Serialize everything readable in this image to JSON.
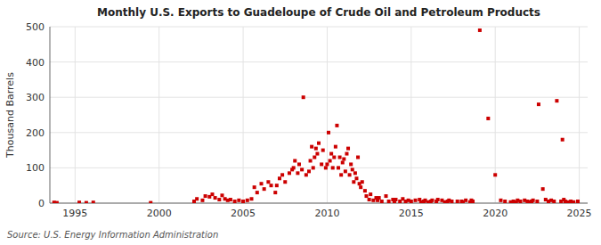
{
  "chart_data": {
    "type": "scatter",
    "title": "Monthly U.S. Exports to Guadeloupe of Crude Oil and Petroleum Products",
    "ylabel": "Thousand Barrels",
    "annotations": [
      "Source: U.S. Energy Information Administration"
    ],
    "color": "#cc0000",
    "marker": "square",
    "grid": true,
    "xlim": [
      1993.5,
      2025.5
    ],
    "ylim": [
      0,
      500
    ],
    "xticks": [
      1995,
      2000,
      2005,
      2010,
      2015,
      2020,
      2025
    ],
    "yticks": [
      0,
      100,
      200,
      300,
      400,
      500
    ],
    "x": [
      1993.75,
      1993.917,
      1995.25,
      1995.667,
      1996.083,
      1999.5,
      2002.083,
      2002.25,
      2002.583,
      2002.75,
      2003.0,
      2003.167,
      2003.333,
      2003.583,
      2003.75,
      2003.917,
      2004.083,
      2004.25,
      2004.5,
      2004.75,
      2005.0,
      2005.25,
      2005.5,
      2005.667,
      2005.833,
      2006.083,
      2006.25,
      2006.5,
      2006.667,
      2006.917,
      2007.0,
      2007.167,
      2007.333,
      2007.5,
      2007.75,
      2007.917,
      2008.0,
      2008.083,
      2008.25,
      2008.333,
      2008.5,
      2008.583,
      2008.75,
      2008.917,
      2009.0,
      2009.083,
      2009.167,
      2009.25,
      2009.333,
      2009.417,
      2009.5,
      2009.667,
      2009.75,
      2009.917,
      2010.0,
      2010.083,
      2010.167,
      2010.25,
      2010.333,
      2010.417,
      2010.5,
      2010.583,
      2010.667,
      2010.75,
      2010.833,
      2010.917,
      2011.0,
      2011.083,
      2011.167,
      2011.25,
      2011.333,
      2011.417,
      2011.5,
      2011.583,
      2011.667,
      2011.75,
      2011.833,
      2011.917,
      2012.0,
      2012.083,
      2012.25,
      2012.333,
      2012.5,
      2012.583,
      2012.75,
      2012.917,
      2013.0,
      2013.083,
      2013.25,
      2013.5,
      2013.667,
      2013.917,
      2014.0,
      2014.083,
      2014.333,
      2014.5,
      2014.667,
      2014.833,
      2015.0,
      2015.25,
      2015.5,
      2015.583,
      2015.75,
      2015.833,
      2016.0,
      2016.167,
      2016.25,
      2016.5,
      2016.583,
      2016.833,
      2017.0,
      2017.167,
      2017.25,
      2017.417,
      2017.75,
      2018.0,
      2018.083,
      2018.25,
      2018.5,
      2018.583,
      2018.667,
      2019.083,
      2019.583,
      2020.0,
      2020.333,
      2020.583,
      2020.917,
      2021.083,
      2021.25,
      2021.333,
      2021.5,
      2021.75,
      2021.917,
      2022.0,
      2022.167,
      2022.25,
      2022.5,
      2022.583,
      2022.833,
      2023.0,
      2023.167,
      2023.333,
      2023.5,
      2023.667,
      2023.917,
      2024.0,
      2024.083,
      2024.167,
      2024.333,
      2024.5,
      2024.667,
      2024.917
    ],
    "values": [
      2,
      1,
      2,
      1,
      2,
      1,
      5,
      12,
      8,
      20,
      18,
      25,
      15,
      10,
      22,
      12,
      8,
      10,
      5,
      8,
      5,
      8,
      12,
      45,
      30,
      55,
      40,
      60,
      50,
      30,
      50,
      70,
      80,
      60,
      85,
      95,
      100,
      120,
      85,
      110,
      95,
      300,
      80,
      90,
      120,
      160,
      100,
      130,
      155,
      140,
      170,
      110,
      150,
      100,
      110,
      200,
      120,
      140,
      100,
      130,
      160,
      220,
      100,
      130,
      80,
      115,
      125,
      90,
      140,
      155,
      80,
      110,
      95,
      60,
      85,
      70,
      130,
      55,
      45,
      60,
      35,
      20,
      10,
      25,
      8,
      15,
      8,
      15,
      5,
      20,
      5,
      10,
      5,
      10,
      5,
      12,
      5,
      8,
      5,
      8,
      10,
      3,
      5,
      8,
      3,
      5,
      8,
      5,
      10,
      8,
      3,
      5,
      8,
      5,
      5,
      5,
      3,
      8,
      3,
      8,
      5,
      490,
      240,
      80,
      8,
      5,
      3,
      5,
      3,
      8,
      5,
      8,
      5,
      3,
      5,
      8,
      5,
      280,
      40,
      10,
      5,
      8,
      5,
      290,
      5,
      180,
      10,
      5,
      3,
      5,
      3,
      5
    ]
  }
}
